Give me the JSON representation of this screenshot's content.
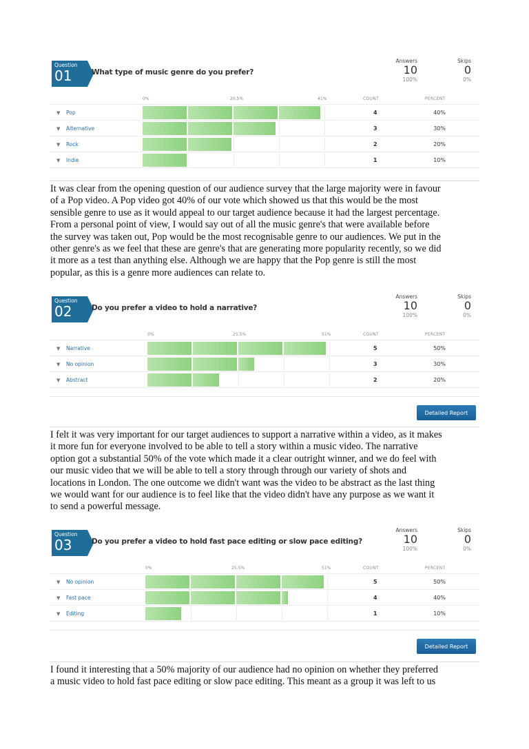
{
  "questions": [
    {
      "badge_word": "Question",
      "number": "01",
      "title": "What type of music genre do you prefer?",
      "answers_label": "Answers",
      "answers_value": "10",
      "answers_pct": "100%",
      "skips_label": "Skips",
      "skips_value": "0",
      "skips_pct": "0%",
      "axis_ticks": [
        "0%",
        "20.5%",
        "41%"
      ],
      "count_header": "COUNT",
      "percent_header": "PERCENT",
      "rows": [
        {
          "label": "Pop",
          "count": "4",
          "percent": "40%"
        },
        {
          "label": "Alternative",
          "count": "3",
          "percent": "30%"
        },
        {
          "label": "Rock",
          "count": "2",
          "percent": "20%"
        },
        {
          "label": "Indie",
          "count": "1",
          "percent": "10%"
        }
      ]
    },
    {
      "badge_word": "Question",
      "number": "02",
      "title": "Do you prefer a video to hold a narrative?",
      "answers_label": "Answers",
      "answers_value": "10",
      "answers_pct": "100%",
      "skips_label": "Skips",
      "skips_value": "0",
      "skips_pct": "0%",
      "axis_ticks": [
        "0%",
        "25.5%",
        "51%"
      ],
      "count_header": "COUNT",
      "percent_header": "PERCENT",
      "rows": [
        {
          "label": "Narrative",
          "count": "5",
          "percent": "50%"
        },
        {
          "label": "No opinion",
          "count": "3",
          "percent": "30%"
        },
        {
          "label": "Abstract",
          "count": "2",
          "percent": "20%"
        }
      ],
      "button_label": "Detailed Report"
    },
    {
      "badge_word": "Question",
      "number": "03",
      "title": "Do you prefer a video to hold fast pace editing or slow pace editing?",
      "answers_label": "Answers",
      "answers_value": "10",
      "answers_pct": "100%",
      "skips_label": "Skips",
      "skips_value": "0",
      "skips_pct": "0%",
      "axis_ticks": [
        "0%",
        "25.5%",
        "51%"
      ],
      "count_header": "COUNT",
      "percent_header": "PERCENT",
      "rows": [
        {
          "label": "No opinion",
          "count": "5",
          "percent": "50%"
        },
        {
          "label": "Fast pace",
          "count": "4",
          "percent": "40%"
        },
        {
          "label": "Editing",
          "count": "1",
          "percent": "10%"
        }
      ],
      "button_label": "Detailed Report"
    }
  ],
  "paragraphs": [
    [
      "It was clear from the opening question of our audience survey that the large majority were in favour",
      "of a Pop video. A Pop video got 40% of our vote which showed us that this would be the most",
      "sensible genre to use as it would appeal to our target audience because it had the largest percentage.",
      "From a personal point of view, I would say out of all the music genre's that were available before",
      "the survey was taken out, Pop would be the most recognisable genre to our audiences. We put in the",
      "other genre's as we feel that these are genre's that are generating more popularity recently, so we did",
      "it more as a test than anything else. Although we are happy that the Pop genre is still the most",
      "popular, as this is a genre more audiences can relate to."
    ],
    [
      "I felt it was very important for our target audiences to support a narrative within a video, as it makes",
      "it more fun for everyone involved to be able to tell a story within a music video. The narrative",
      "option got a substantial 50% of the vote which made it a clear outright winner, and we do feel with",
      "our music video that we will be able to tell a story through through our variety of shots and",
      "locations in London. The one outcome we didn't want was the video to be abstract as the last thing",
      "we would want for our audience is to feel like that the video didn't have any purpose as we want it",
      "to send a powerful message."
    ],
    [
      "I found it interesting that a 50% majority of our audience had no opinion on whether they preferred",
      "a music video to hold fast pace editing or slow pace editing. This meant as a group it was left to us"
    ]
  ],
  "colors": {
    "badge": "#1f6e99",
    "bar_light": "#b7e3ac",
    "bar_dark": "#8dd27f",
    "label_link": "#2a6ea8",
    "button": "#1f6ba5"
  },
  "chart_data": [
    {
      "type": "bar",
      "title": "What type of music genre do you prefer?",
      "categories": [
        "Pop",
        "Alternative",
        "Rock",
        "Indie"
      ],
      "values": [
        40,
        30,
        20,
        10
      ],
      "counts": [
        4,
        3,
        2,
        1
      ],
      "xlabel": "",
      "ylabel": "",
      "xlim": [
        0,
        41
      ],
      "tick_labels": [
        "0%",
        "20.5%",
        "41%"
      ],
      "orientation": "horizontal"
    },
    {
      "type": "bar",
      "title": "Do you prefer a video to hold a narrative?",
      "categories": [
        "Narrative",
        "No opinion",
        "Abstract"
      ],
      "values": [
        50,
        30,
        20
      ],
      "counts": [
        5,
        3,
        2
      ],
      "xlabel": "",
      "ylabel": "",
      "xlim": [
        0,
        51
      ],
      "tick_labels": [
        "0%",
        "25.5%",
        "51%"
      ],
      "orientation": "horizontal"
    },
    {
      "type": "bar",
      "title": "Do you prefer a video to hold fast pace editing or slow pace editing?",
      "categories": [
        "No opinion",
        "Fast pace",
        "Editing"
      ],
      "values": [
        50,
        40,
        10
      ],
      "counts": [
        5,
        4,
        1
      ],
      "xlabel": "",
      "ylabel": "",
      "xlim": [
        0,
        51
      ],
      "tick_labels": [
        "0%",
        "25.5%",
        "51%"
      ],
      "orientation": "horizontal"
    }
  ]
}
